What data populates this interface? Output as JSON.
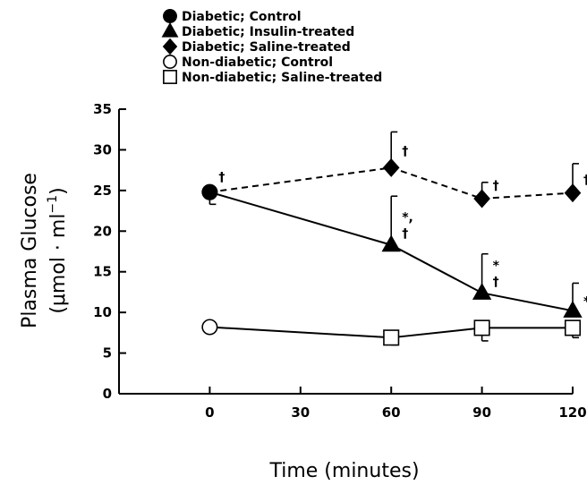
{
  "chart_data": {
    "type": "line",
    "xlabel": "Time (minutes)",
    "ylabel_line1": "Plasma Glucose",
    "ylabel_line2_prefix": "(μmol · ml",
    "ylabel_superscript": "−1",
    "ylabel_line2_suffix": ")",
    "xlim": [
      -30,
      120
    ],
    "ylim": [
      0,
      35
    ],
    "xticks": [
      0,
      30,
      60,
      90,
      120
    ],
    "yticks": [
      0,
      5,
      10,
      15,
      20,
      25,
      30,
      35
    ],
    "grid": false,
    "legend_position": "top-left",
    "legend": [
      {
        "label": "Diabetic; Control",
        "marker": "circle",
        "fill": "#000000"
      },
      {
        "label": "Diabetic; Insulin-treated",
        "marker": "triangle",
        "fill": "#000000"
      },
      {
        "label": "Diabetic; Saline-treated",
        "marker": "diamond",
        "fill": "#000000"
      },
      {
        "label": "Non-diabetic; Control",
        "marker": "circle",
        "fill": "#ffffff"
      },
      {
        "label": "Non-diabetic; Saline-treated",
        "marker": "square",
        "fill": "#ffffff"
      }
    ],
    "series": [
      {
        "name": "Diabetic; Control",
        "marker": "circle",
        "fill": "#000000",
        "line": "none",
        "points": [
          {
            "x": 0,
            "y": 24.8,
            "err": 1.5,
            "err_dir": "down"
          }
        ]
      },
      {
        "name": "Diabetic; Insulin-treated",
        "marker": "triangle",
        "fill": "#000000",
        "line": "solid",
        "points": [
          {
            "x": 0,
            "y": 24.8
          },
          {
            "x": 60,
            "y": 18.3,
            "err": 6.0,
            "err_dir": "up"
          },
          {
            "x": 90,
            "y": 12.4,
            "err": 4.8,
            "err_dir": "up"
          },
          {
            "x": 120,
            "y": 10.2,
            "err": 3.4,
            "err_dir": "up"
          }
        ]
      },
      {
        "name": "Diabetic; Saline-treated",
        "marker": "diamond",
        "fill": "#000000",
        "line": "dashed",
        "points": [
          {
            "x": 0,
            "y": 24.8
          },
          {
            "x": 60,
            "y": 27.8,
            "err": 4.4,
            "err_dir": "up"
          },
          {
            "x": 90,
            "y": 24.0,
            "err": 2.0,
            "err_dir": "up"
          },
          {
            "x": 120,
            "y": 24.7,
            "err": 3.6,
            "err_dir": "up"
          }
        ]
      },
      {
        "name": "Non-diabetic; Control",
        "marker": "circle",
        "fill": "#ffffff",
        "line": "solid",
        "points": [
          {
            "x": 0,
            "y": 8.2
          }
        ]
      },
      {
        "name": "Non-diabetic; Saline-treated",
        "marker": "square",
        "fill": "#ffffff",
        "line": "solid",
        "points": [
          {
            "x": 0,
            "y": 8.2
          },
          {
            "x": 60,
            "y": 6.9,
            "err": 0.9,
            "err_dir": "down"
          },
          {
            "x": 90,
            "y": 8.1,
            "err": 1.6,
            "err_dir": "down"
          },
          {
            "x": 120,
            "y": 8.1,
            "err": 1.2,
            "err_dir": "down"
          }
        ]
      }
    ],
    "annotations": [
      {
        "x": 0,
        "y": 24.8,
        "text": "†"
      },
      {
        "x": 60,
        "y": 27.8,
        "text": "†"
      },
      {
        "x": 90,
        "y": 24.0,
        "text": "†"
      },
      {
        "x": 120,
        "y": 24.7,
        "text": "†"
      },
      {
        "x": 60,
        "y": 18.3,
        "text": "*,"
      },
      {
        "x": 60,
        "y": 18.3,
        "text": "†"
      },
      {
        "x": 90,
        "y": 12.4,
        "text": "*"
      },
      {
        "x": 90,
        "y": 12.4,
        "text": "†"
      },
      {
        "x": 120,
        "y": 10.2,
        "text": "*"
      }
    ]
  }
}
